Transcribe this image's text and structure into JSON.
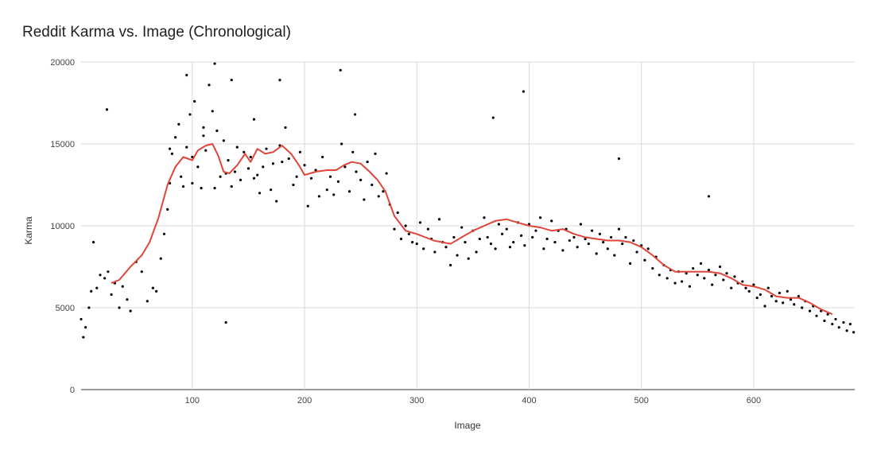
{
  "chart_data": {
    "type": "scatter",
    "title": "Reddit Karma vs. Image (Chronological)",
    "xlabel": "Image",
    "ylabel": "Karma",
    "xlim": [
      1,
      690
    ],
    "ylim": [
      0,
      20000
    ],
    "x_ticks": [
      100,
      200,
      300,
      400,
      500,
      600
    ],
    "y_ticks": [
      0,
      5000,
      10000,
      15000,
      20000
    ],
    "grid": true,
    "legend": "none",
    "colors": {
      "points": "#000000",
      "trend": "#e0453a",
      "grid": "#d9d9d9"
    },
    "trend": {
      "x": [
        28,
        35,
        45,
        55,
        62,
        70,
        78,
        85,
        92,
        100,
        105,
        112,
        118,
        123,
        128,
        133,
        140,
        147,
        152,
        158,
        165,
        172,
        180,
        188,
        195,
        200,
        210,
        220,
        228,
        235,
        242,
        250,
        258,
        265,
        272,
        280,
        290,
        300,
        315,
        330,
        340,
        350,
        360,
        370,
        380,
        390,
        400,
        410,
        420,
        430,
        440,
        450,
        460,
        470,
        480,
        490,
        500,
        510,
        520,
        530,
        540,
        550,
        560,
        570,
        580,
        590,
        600,
        610,
        620,
        630,
        640,
        650,
        660,
        670
      ],
      "y": [
        6500,
        6700,
        7500,
        8200,
        9000,
        10500,
        12500,
        13600,
        14200,
        14000,
        14600,
        14900,
        15000,
        14300,
        13300,
        13200,
        13700,
        14400,
        13900,
        14700,
        14400,
        14500,
        14900,
        14400,
        13700,
        13100,
        13300,
        13400,
        13400,
        13700,
        13900,
        13800,
        13300,
        12800,
        12100,
        10600,
        9700,
        9500,
        9100,
        8900,
        9300,
        9700,
        10000,
        10300,
        10400,
        10200,
        10000,
        9900,
        9700,
        9800,
        9500,
        9300,
        9200,
        9100,
        9100,
        9000,
        8700,
        8200,
        7600,
        7200,
        7200,
        7200,
        7200,
        7100,
        6800,
        6400,
        6300,
        6100,
        5700,
        5600,
        5600,
        5300,
        4900,
        4600
      ]
    },
    "points": {
      "x": [
        1,
        3,
        5,
        8,
        10,
        12,
        15,
        18,
        22,
        25,
        28,
        31,
        35,
        38,
        42,
        45,
        50,
        55,
        60,
        65,
        68,
        72,
        75,
        78,
        80,
        82,
        85,
        88,
        90,
        92,
        95,
        98,
        100,
        102,
        105,
        108,
        110,
        112,
        115,
        118,
        120,
        122,
        125,
        128,
        130,
        132,
        135,
        138,
        140,
        143,
        146,
        150,
        152,
        155,
        158,
        160,
        163,
        166,
        170,
        172,
        175,
        178,
        180,
        183,
        186,
        190,
        193,
        196,
        200,
        203,
        206,
        210,
        213,
        216,
        220,
        223,
        226,
        230,
        233,
        236,
        240,
        243,
        246,
        250,
        253,
        256,
        260,
        263,
        266,
        270,
        273,
        276,
        280,
        283,
        286,
        290,
        293,
        296,
        300,
        303,
        306,
        310,
        313,
        316,
        320,
        323,
        326,
        330,
        333,
        336,
        340,
        343,
        346,
        350,
        353,
        356,
        360,
        363,
        366,
        370,
        373,
        376,
        380,
        383,
        386,
        390,
        393,
        396,
        400,
        403,
        406,
        410,
        413,
        416,
        420,
        423,
        426,
        430,
        433,
        436,
        440,
        443,
        446,
        450,
        453,
        456,
        460,
        463,
        466,
        470,
        473,
        476,
        480,
        483,
        486,
        490,
        493,
        496,
        500,
        503,
        506,
        510,
        513,
        516,
        520,
        523,
        526,
        530,
        533,
        536,
        540,
        543,
        546,
        550,
        553,
        556,
        560,
        563,
        566,
        570,
        573,
        576,
        580,
        583,
        586,
        590,
        593,
        596,
        600,
        603,
        606,
        610,
        613,
        616,
        620,
        623,
        626,
        630,
        633,
        636,
        640,
        643,
        646,
        650,
        653,
        656,
        660,
        663,
        666,
        670,
        673,
        676,
        680,
        683,
        686,
        689,
        24,
        120,
        95,
        80,
        135,
        130,
        178,
        232,
        395,
        560,
        480,
        155,
        100,
        245,
        368,
        110
      ],
      "y": [
        4300,
        3200,
        3800,
        5000,
        6000,
        9000,
        6200,
        7000,
        6800,
        7200,
        5800,
        6500,
        5000,
        6300,
        5500,
        4800,
        7800,
        7200,
        5400,
        6200,
        6000,
        8000,
        9500,
        11000,
        12600,
        14400,
        15400,
        16200,
        13000,
        12400,
        14800,
        16800,
        14200,
        17600,
        13600,
        12300,
        15500,
        14600,
        18600,
        17000,
        12300,
        15800,
        13000,
        15200,
        13200,
        14000,
        12400,
        13300,
        14800,
        12800,
        14500,
        13500,
        14200,
        12900,
        13100,
        12000,
        13600,
        14700,
        12200,
        13800,
        11500,
        14900,
        13900,
        16000,
        14100,
        12500,
        13000,
        14500,
        13700,
        11200,
        12900,
        13400,
        11800,
        14200,
        12200,
        13000,
        11900,
        12700,
        15000,
        13600,
        12100,
        14500,
        13300,
        12800,
        11600,
        13900,
        12500,
        14400,
        11800,
        12100,
        13200,
        11300,
        9800,
        10800,
        9200,
        10000,
        9500,
        9000,
        8900,
        10200,
        8600,
        9800,
        9200,
        8400,
        10400,
        9000,
        8700,
        7600,
        9300,
        8200,
        9900,
        9000,
        8000,
        9700,
        8400,
        9200,
        10500,
        9300,
        8900,
        8600,
        10100,
        9500,
        9800,
        8700,
        9000,
        10200,
        9400,
        8800,
        10100,
        9300,
        9700,
        10500,
        8600,
        9200,
        10300,
        9000,
        9700,
        8500,
        9800,
        9100,
        9300,
        8700,
        10100,
        9200,
        8900,
        9700,
        8300,
        9500,
        9000,
        8600,
        9300,
        8200,
        9800,
        8900,
        9300,
        7700,
        9100,
        8400,
        8800,
        7900,
        8600,
        7400,
        8100,
        7000,
        7600,
        6800,
        7300,
        6500,
        7200,
        6600,
        7100,
        6300,
        7400,
        7000,
        7700,
        6800,
        7300,
        6400,
        7000,
        7500,
        6700,
        7100,
        6200,
        6900,
        6500,
        6600,
        6200,
        6000,
        6400,
        5600,
        5800,
        5100,
        6200,
        5700,
        5400,
        5900,
        5300,
        6000,
        5500,
        5200,
        5700,
        5000,
        5400,
        4800,
        5100,
        4500,
        4800,
        4200,
        4600,
        4000,
        4300,
        3800,
        4100,
        3600,
        4000,
        3500,
        17100,
        19900,
        19200,
        14700,
        18900,
        4100,
        18900,
        19500,
        18200,
        11800,
        14100,
        16500,
        12600,
        16800,
        16600,
        16000
      ]
    }
  }
}
